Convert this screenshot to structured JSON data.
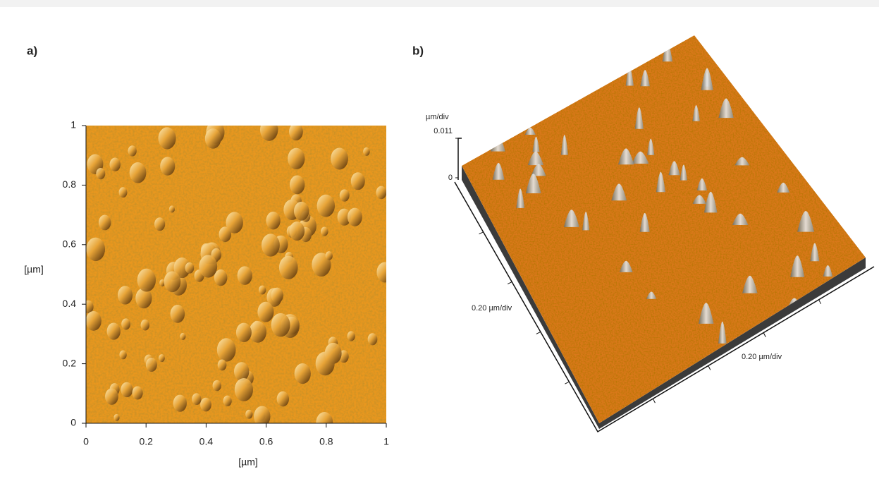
{
  "panels": {
    "a": {
      "label": "a)",
      "x_label": "[µm]",
      "y_label": "[µm]",
      "xlim": [
        0,
        1
      ],
      "ylim": [
        0,
        1
      ],
      "xticks": [
        0,
        0.2,
        0.4,
        0.6,
        0.8,
        1
      ],
      "yticks": [
        0,
        0.2,
        0.4,
        0.6,
        0.8,
        1
      ]
    },
    "b": {
      "label": "b)",
      "z_unit": "µm/div",
      "zticks": [
        0,
        0.011
      ],
      "x_scale": "0.20 µm/div",
      "y_scale": "0.20 µm/div"
    }
  }
}
